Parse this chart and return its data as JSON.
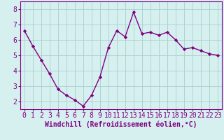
{
  "x": [
    0,
    1,
    2,
    3,
    4,
    5,
    6,
    7,
    8,
    9,
    10,
    11,
    12,
    13,
    14,
    15,
    16,
    17,
    18,
    19,
    20,
    21,
    22,
    23
  ],
  "y": [
    6.6,
    5.6,
    4.7,
    3.8,
    2.8,
    2.4,
    2.1,
    1.7,
    2.4,
    3.6,
    5.5,
    6.6,
    6.2,
    7.8,
    6.4,
    6.5,
    6.3,
    6.5,
    6.0,
    5.4,
    5.5,
    5.3,
    5.1,
    5.0
  ],
  "line_color": "#800080",
  "marker": "D",
  "marker_size": 2.2,
  "bg_color": "#d6f0f0",
  "grid_color": "#aacece",
  "xlabel": "Windchill (Refroidissement éolien,°C)",
  "xlim": [
    -0.5,
    23.5
  ],
  "ylim": [
    1.5,
    8.5
  ],
  "yticks": [
    2,
    3,
    4,
    5,
    6,
    7,
    8
  ],
  "xticks": [
    0,
    1,
    2,
    3,
    4,
    5,
    6,
    7,
    8,
    9,
    10,
    11,
    12,
    13,
    14,
    15,
    16,
    17,
    18,
    19,
    20,
    21,
    22,
    23
  ],
  "axis_color": "#800080",
  "tick_color": "#800080",
  "xlabel_color": "#800080",
  "xlabel_fontsize": 7.0,
  "tick_fontsize": 7.0,
  "linewidth": 1.0
}
